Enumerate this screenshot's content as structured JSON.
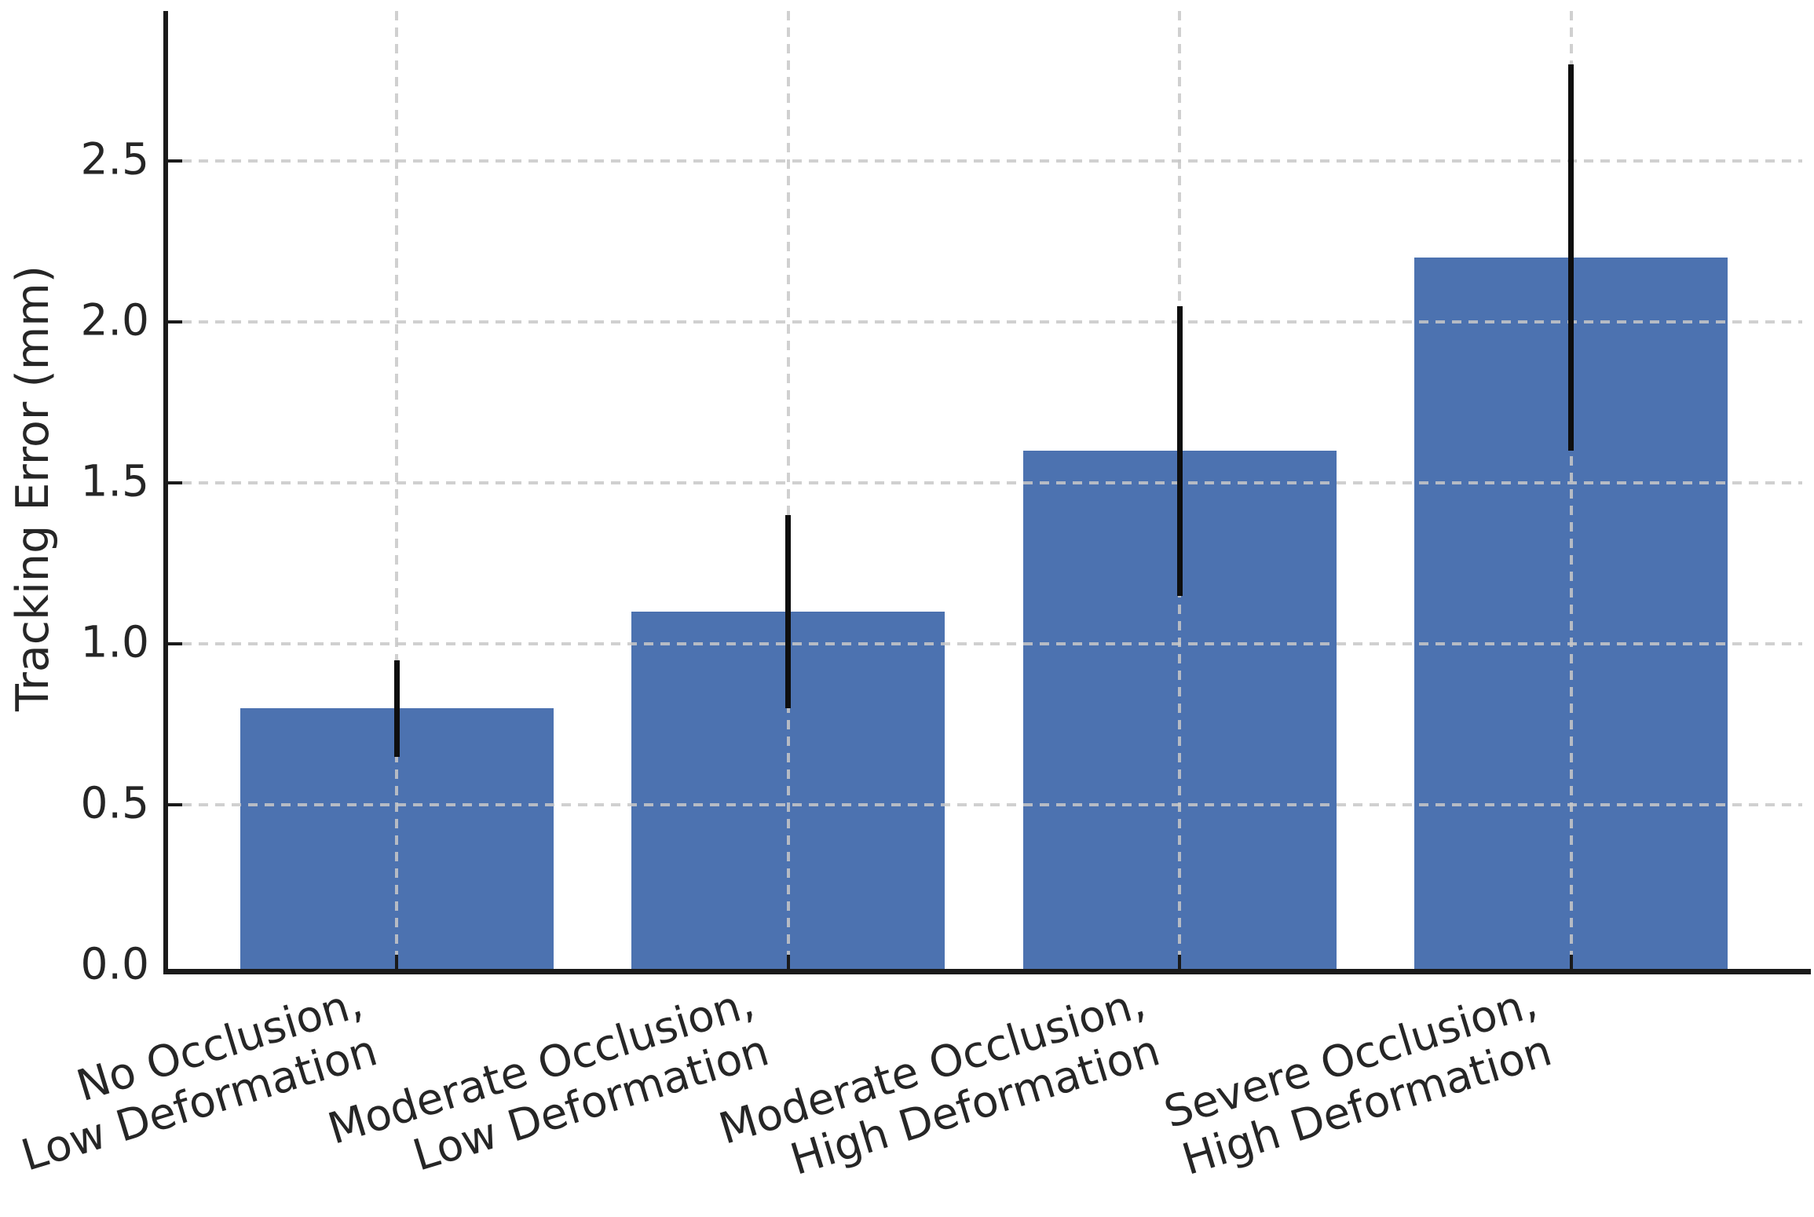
{
  "page": {
    "background": "#ffffff"
  },
  "chart_data": {
    "type": "bar",
    "title": "",
    "categories": [
      "No Occlusion,\nLow Deformation",
      "Moderate Occlusion,\nLow Deformation",
      "Moderate Occlusion,\nHigh Deformation",
      "Severe Occlusion,\nHigh Deformation"
    ],
    "values": [
      0.8,
      1.1,
      1.6,
      2.2
    ],
    "errors": [
      0.15,
      0.3,
      0.45,
      0.6
    ],
    "error_low": [
      0.65,
      0.8,
      1.15,
      1.6
    ],
    "error_high": [
      0.95,
      1.4,
      2.05,
      2.8
    ],
    "xlabel": "",
    "ylabel": "Tracking Error (mm)",
    "yticks": [
      "0.0",
      "0.5",
      "1.0",
      "1.5",
      "2.0",
      "2.5"
    ],
    "ylim": [
      0,
      2.96
    ],
    "bar_color": "#4c72b0",
    "error_bar_color": "#0e0e0e",
    "grid": {
      "axis": "both",
      "linestyle": "--",
      "color": "#c8c8c8",
      "drawn_above_bars": true
    },
    "tick_direction": "in",
    "x_tick_label_rotation_deg": 17,
    "legend_position": "none"
  }
}
